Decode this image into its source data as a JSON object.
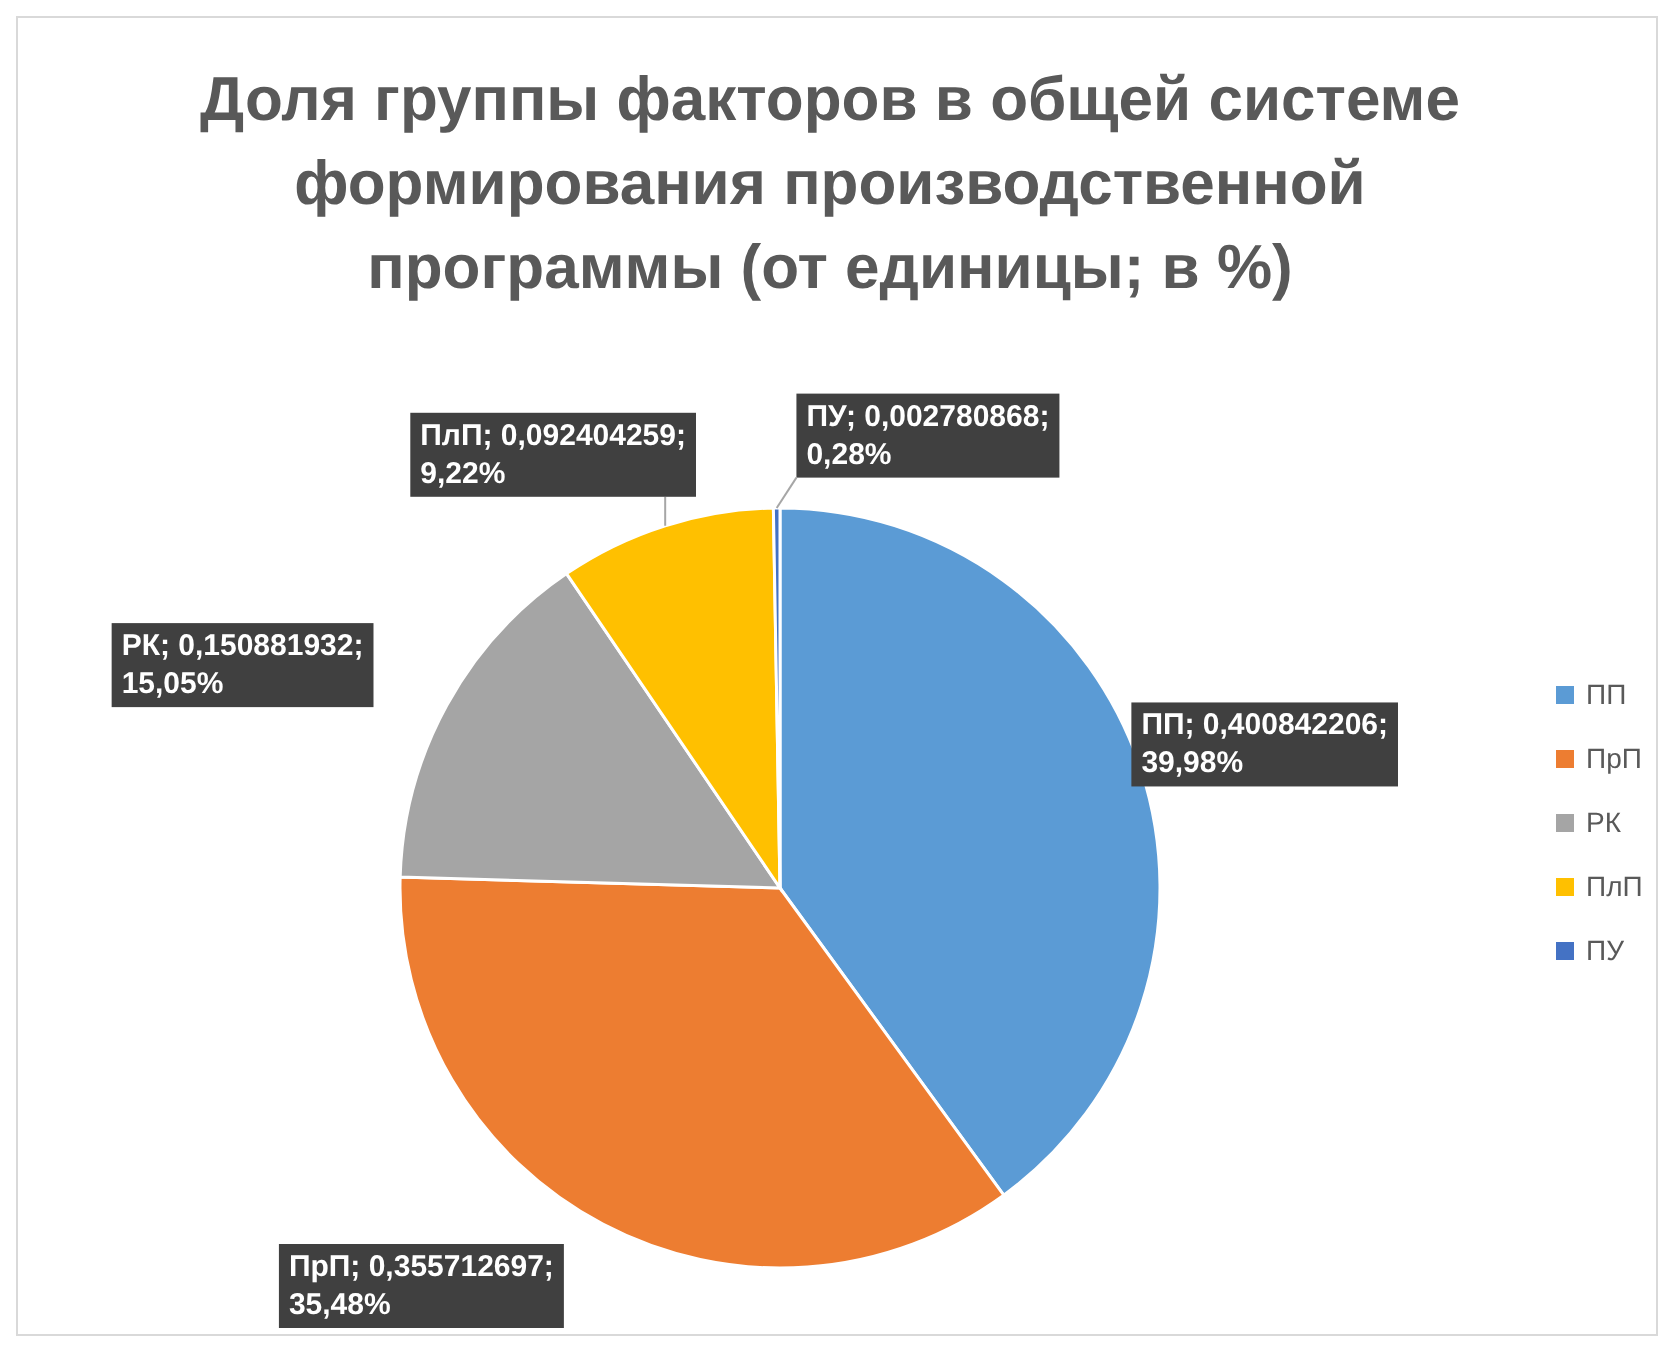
{
  "chart_data": {
    "type": "pie",
    "title": "Доля группы факторов в общей системе формирования производственной программы (от единицы; в %)",
    "categories": [
      "ПП",
      "ПрП",
      "РК",
      "ПлП",
      "ПУ"
    ],
    "values": [
      0.400842206,
      0.355712697,
      0.150881932,
      0.092404259,
      0.002780868
    ],
    "colors": [
      "#5b9bd5",
      "#ed7d31",
      "#a5a5a5",
      "#ffc000",
      "#4472c4"
    ],
    "value_labels": [
      "ПП; 0,400842206; 39,98%",
      "ПрП; 0,355712697; 35,48%",
      "РК; 0,150881932; 15,05%",
      "ПлП; 0,092404259; 9,22%",
      "ПУ; 0,002780868; 0,28%"
    ],
    "legend": "right"
  }
}
